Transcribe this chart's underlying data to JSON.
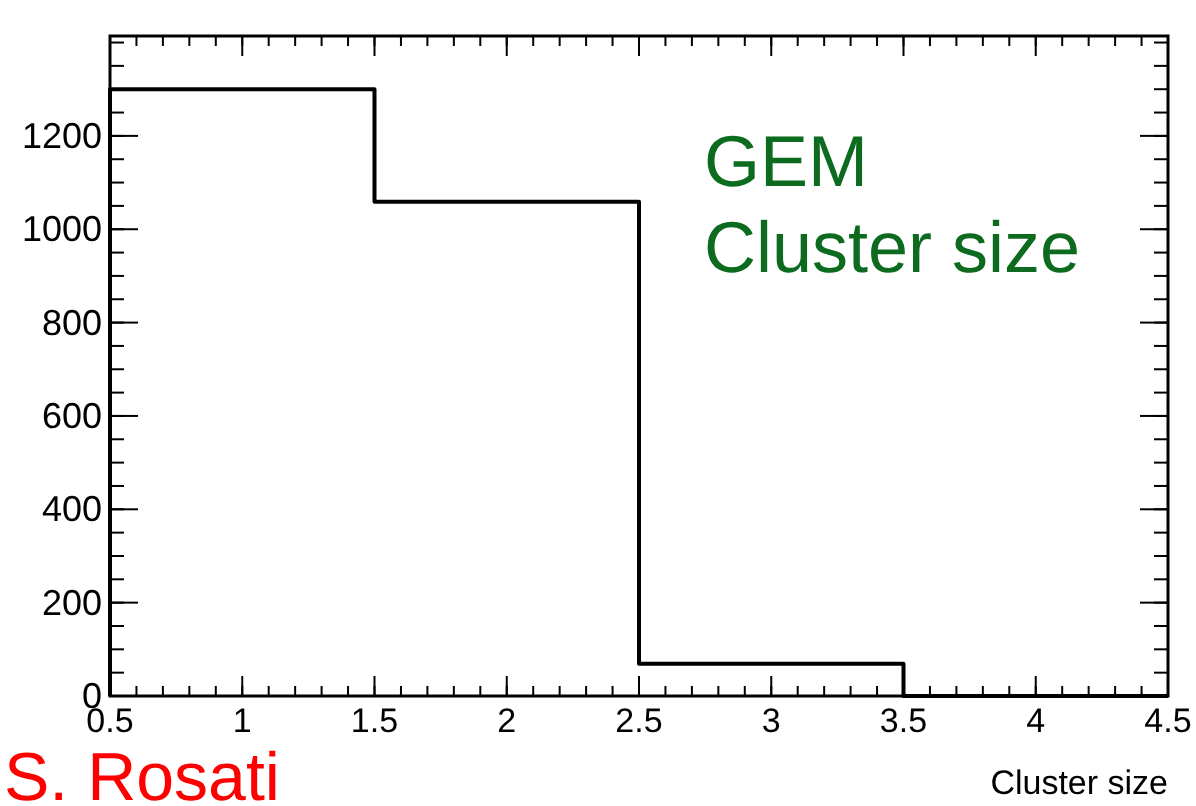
{
  "chart_data": {
    "type": "histogram",
    "xlabel": "Cluster size",
    "bins": [
      0.5,
      1.5,
      2.5,
      3.5,
      4.5
    ],
    "values": [
      1300,
      1059,
      69,
      0
    ],
    "color": "#000000",
    "xlim": [
      0.5,
      4.5
    ],
    "xticks": [
      0.5,
      1,
      1.5,
      2,
      2.5,
      3,
      3.5,
      4,
      4.5
    ],
    "ylim": [
      0,
      1414
    ],
    "yticks": [
      0,
      200,
      400,
      600,
      800,
      1000,
      1200
    ],
    "grid": false,
    "annotations": [
      "GEM",
      "Cluster size",
      "S. Rosati"
    ]
  }
}
